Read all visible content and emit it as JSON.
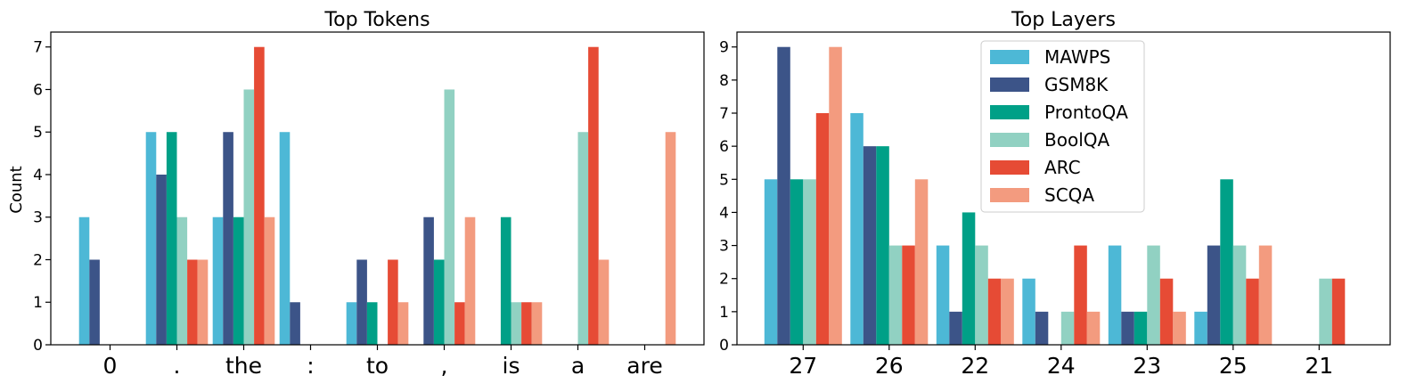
{
  "series_colors": {
    "MAWPS": "#4db8d6",
    "GSM8K": "#3c5488",
    "ProntoQA": "#00a087",
    "BoolQA": "#91d1c2",
    "ARC": "#e64b35",
    "SCQA": "#f39b7f"
  },
  "chart_data": [
    {
      "type": "bar",
      "title": "Top Tokens",
      "xlabel": "",
      "ylabel": "Count",
      "ylim": [
        0,
        7.35
      ],
      "yticks": [
        0,
        1,
        2,
        3,
        4,
        5,
        6,
        7
      ],
      "grid": false,
      "legend": null,
      "categories": [
        "0",
        ".",
        "the",
        ":",
        "to",
        ",",
        "is",
        "a",
        "are"
      ],
      "series": [
        {
          "name": "MAWPS",
          "values": [
            3,
            5,
            3,
            5,
            1,
            0,
            0,
            0,
            0
          ]
        },
        {
          "name": "GSM8K",
          "values": [
            2,
            4,
            5,
            1,
            2,
            3,
            0,
            0,
            0
          ]
        },
        {
          "name": "ProntoQA",
          "values": [
            0,
            5,
            3,
            0,
            1,
            2,
            3,
            0,
            0
          ]
        },
        {
          "name": "BoolQA",
          "values": [
            0,
            3,
            6,
            0,
            0,
            6,
            1,
            5,
            0
          ]
        },
        {
          "name": "ARC",
          "values": [
            0,
            2,
            7,
            0,
            2,
            1,
            1,
            7,
            0
          ]
        },
        {
          "name": "SCQA",
          "values": [
            0,
            2,
            3,
            0,
            1,
            3,
            1,
            2,
            5
          ]
        }
      ]
    },
    {
      "type": "bar",
      "title": "Top Layers",
      "xlabel": "",
      "ylabel": "",
      "ylim": [
        0,
        9.45
      ],
      "yticks": [
        0,
        1,
        2,
        3,
        4,
        5,
        6,
        7,
        8,
        9
      ],
      "grid": false,
      "legend": "top-center",
      "categories": [
        "27",
        "26",
        "22",
        "24",
        "23",
        "25",
        "21"
      ],
      "series": [
        {
          "name": "MAWPS",
          "values": [
            5,
            7,
            3,
            2,
            3,
            1,
            0
          ]
        },
        {
          "name": "GSM8K",
          "values": [
            9,
            6,
            1,
            1,
            1,
            3,
            0
          ]
        },
        {
          "name": "ProntoQA",
          "values": [
            5,
            6,
            4,
            0,
            1,
            5,
            0
          ]
        },
        {
          "name": "BoolQA",
          "values": [
            5,
            3,
            3,
            1,
            3,
            3,
            2
          ]
        },
        {
          "name": "ARC",
          "values": [
            7,
            3,
            2,
            3,
            2,
            2,
            2
          ]
        },
        {
          "name": "SCQA",
          "values": [
            9,
            5,
            2,
            1,
            1,
            3,
            0
          ]
        }
      ]
    }
  ]
}
